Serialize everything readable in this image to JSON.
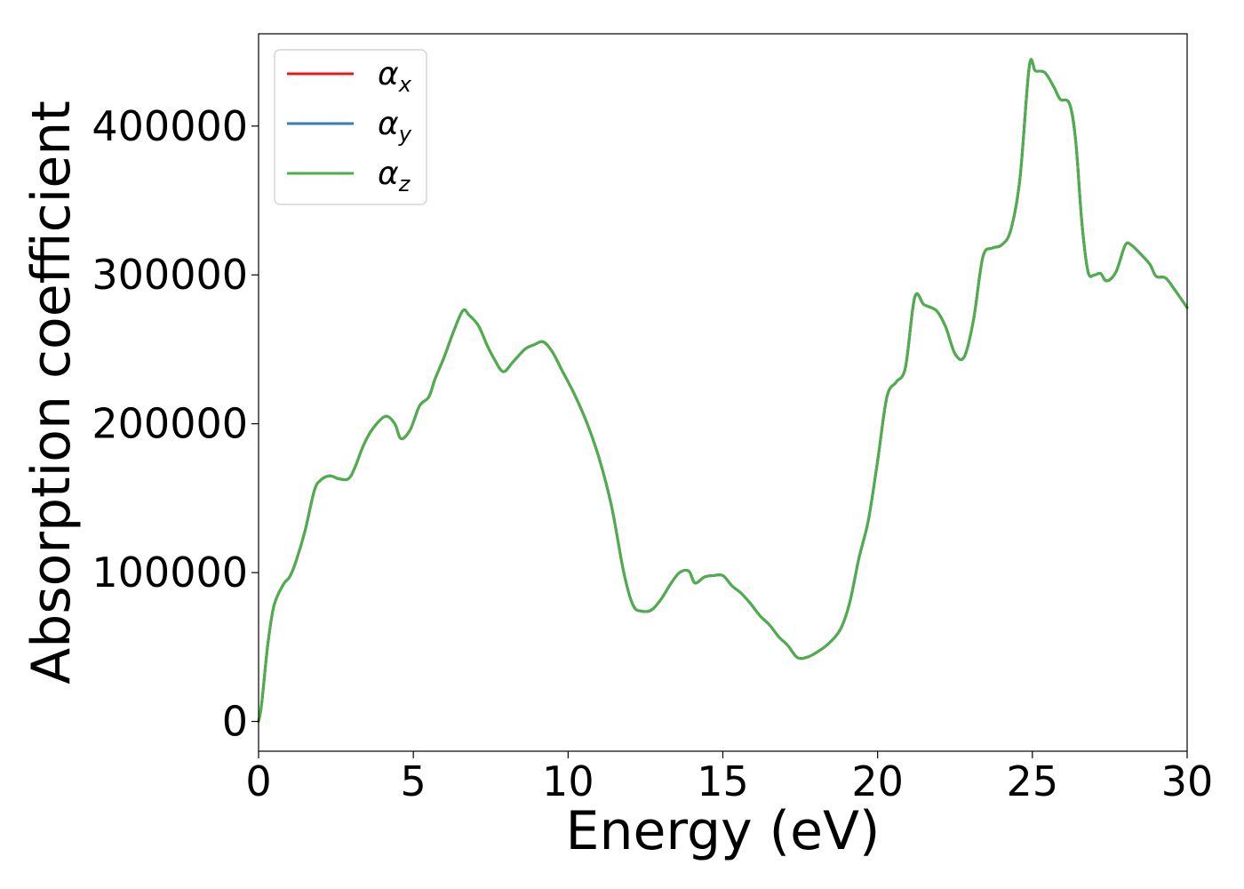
{
  "chart_data": {
    "type": "line",
    "xlabel": "Energy (eV)",
    "ylabel": "Absorption coefficient",
    "xlim": [
      0,
      30
    ],
    "ylim": [
      -20000,
      462000
    ],
    "xticks": [
      0,
      5,
      10,
      15,
      20,
      25,
      30
    ],
    "xtick_labels": [
      "0",
      "5",
      "10",
      "15",
      "20",
      "25",
      "30"
    ],
    "yticks": [
      0,
      100000,
      200000,
      300000,
      400000
    ],
    "ytick_labels": [
      "0",
      "100000",
      "200000",
      "300000",
      "400000"
    ],
    "grid": false,
    "legend": {
      "position": "upper-left",
      "entries": [
        {
          "symbol": "α",
          "sub": "x",
          "color": "#e41a1c"
        },
        {
          "symbol": "α",
          "sub": "y",
          "color": "#377eb8"
        },
        {
          "symbol": "α",
          "sub": "z",
          "color": "#4daf4a"
        }
      ]
    },
    "x": [
      0.0,
      0.1,
      0.3,
      0.5,
      0.8,
      1.0,
      1.2,
      1.5,
      1.8,
      2.0,
      2.3,
      2.6,
      2.9,
      3.1,
      3.4,
      3.7,
      4.1,
      4.4,
      4.6,
      4.9,
      5.2,
      5.5,
      5.7,
      6.0,
      6.3,
      6.6,
      6.8,
      7.1,
      7.4,
      7.6,
      7.9,
      8.2,
      8.6,
      8.9,
      9.2,
      9.5,
      9.8,
      10.2,
      10.6,
      11.0,
      11.4,
      11.8,
      12.1,
      12.4,
      12.7,
      13.0,
      13.3,
      13.6,
      13.9,
      14.1,
      14.4,
      14.7,
      15.0,
      15.3,
      15.6,
      15.9,
      16.2,
      16.5,
      16.8,
      17.1,
      17.4,
      17.7,
      18.0,
      18.4,
      18.8,
      19.1,
      19.4,
      19.7,
      20.0,
      20.3,
      20.6,
      20.9,
      21.2,
      21.5,
      21.9,
      22.2,
      22.5,
      22.8,
      23.1,
      23.4,
      23.7,
      24.0,
      24.3,
      24.6,
      24.9,
      25.1,
      25.4,
      25.7,
      25.9,
      26.2,
      26.4,
      26.6,
      26.8,
      27.0,
      27.2,
      27.4,
      27.7,
      28.0,
      28.2,
      28.5,
      28.8,
      29.0,
      29.3,
      29.6,
      30.0
    ],
    "series": [
      {
        "name": "αx",
        "color": "#e41a1c",
        "values": [
          0,
          12000,
          52000,
          78000,
          92000,
          97000,
          107000,
          128000,
          155000,
          162000,
          165000,
          163000,
          163000,
          170000,
          186000,
          197000,
          205000,
          200000,
          190000,
          196000,
          212000,
          218000,
          230000,
          245000,
          262000,
          276000,
          273000,
          266000,
          252000,
          244000,
          235000,
          241000,
          250000,
          253000,
          255000,
          248000,
          236000,
          220000,
          201000,
          177000,
          145000,
          100000,
          78000,
          74000,
          75000,
          82000,
          92000,
          100000,
          101000,
          93000,
          97000,
          98000,
          98000,
          91000,
          86000,
          79000,
          71000,
          65000,
          57000,
          51000,
          43000,
          43000,
          46000,
          52000,
          62000,
          80000,
          110000,
          135000,
          175000,
          218000,
          228000,
          238000,
          285000,
          280000,
          276000,
          265000,
          247000,
          245000,
          270000,
          312000,
          318000,
          320000,
          330000,
          365000,
          440000,
          437000,
          436000,
          426000,
          418000,
          415000,
          390000,
          335000,
          302000,
          300000,
          301000,
          296000,
          302000,
          320000,
          320000,
          314000,
          307000,
          299000,
          298000,
          290000,
          278000
        ]
      },
      {
        "name": "αy",
        "color": "#377eb8",
        "values": [
          0,
          12000,
          52000,
          78000,
          92000,
          97000,
          107000,
          128000,
          155000,
          162000,
          165000,
          163000,
          163000,
          170000,
          186000,
          197000,
          205000,
          200000,
          190000,
          196000,
          212000,
          218000,
          230000,
          245000,
          262000,
          276000,
          273000,
          266000,
          252000,
          244000,
          235000,
          241000,
          250000,
          253000,
          255000,
          248000,
          236000,
          220000,
          201000,
          177000,
          145000,
          100000,
          78000,
          74000,
          75000,
          82000,
          92000,
          100000,
          101000,
          93000,
          97000,
          98000,
          98000,
          91000,
          86000,
          79000,
          71000,
          65000,
          57000,
          51000,
          43000,
          43000,
          46000,
          52000,
          62000,
          80000,
          110000,
          135000,
          175000,
          218000,
          228000,
          238000,
          285000,
          280000,
          276000,
          265000,
          247000,
          245000,
          270000,
          312000,
          318000,
          320000,
          330000,
          365000,
          440000,
          437000,
          436000,
          426000,
          418000,
          415000,
          390000,
          335000,
          302000,
          300000,
          301000,
          296000,
          302000,
          320000,
          320000,
          314000,
          307000,
          299000,
          298000,
          290000,
          278000
        ]
      },
      {
        "name": "αz",
        "color": "#4daf4a",
        "values": [
          0,
          12000,
          52000,
          78000,
          92000,
          97000,
          107000,
          128000,
          155000,
          162000,
          165000,
          163000,
          163000,
          170000,
          186000,
          197000,
          205000,
          200000,
          190000,
          196000,
          212000,
          218000,
          230000,
          245000,
          262000,
          276000,
          273000,
          266000,
          252000,
          244000,
          235000,
          241000,
          250000,
          253000,
          255000,
          248000,
          236000,
          220000,
          201000,
          177000,
          145000,
          100000,
          78000,
          74000,
          75000,
          82000,
          92000,
          100000,
          101000,
          93000,
          97000,
          98000,
          98000,
          91000,
          86000,
          79000,
          71000,
          65000,
          57000,
          51000,
          43000,
          43000,
          46000,
          52000,
          62000,
          80000,
          110000,
          135000,
          175000,
          218000,
          228000,
          238000,
          285000,
          280000,
          276000,
          265000,
          247000,
          245000,
          270000,
          312000,
          318000,
          320000,
          330000,
          365000,
          440000,
          437000,
          436000,
          426000,
          418000,
          415000,
          390000,
          335000,
          302000,
          300000,
          301000,
          296000,
          302000,
          320000,
          320000,
          314000,
          307000,
          299000,
          298000,
          290000,
          278000
        ]
      }
    ]
  }
}
